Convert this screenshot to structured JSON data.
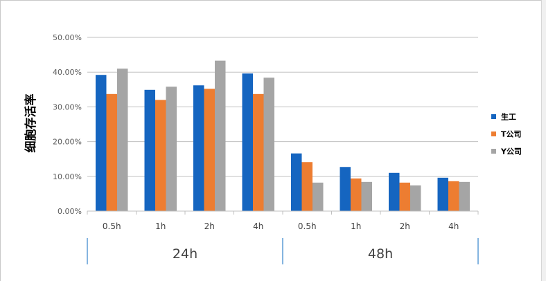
{
  "chart_data": {
    "type": "bar",
    "ylabel": "细胞存活率",
    "ylim": [
      0,
      0.5
    ],
    "yticks": [
      {
        "value": 0.0,
        "label": "0.00%"
      },
      {
        "value": 0.1,
        "label": "10.00%"
      },
      {
        "value": 0.2,
        "label": "20.00%"
      },
      {
        "value": 0.3,
        "label": "30.00%"
      },
      {
        "value": 0.4,
        "label": "40.00%"
      },
      {
        "value": 0.5,
        "label": "50.00%"
      }
    ],
    "grid": true,
    "legend_position": "right",
    "categories": [
      "0.5h",
      "1h",
      "2h",
      "4h",
      "0.5h",
      "1h",
      "2h",
      "4h"
    ],
    "groups": [
      {
        "label": "24h",
        "span": [
          0,
          3
        ]
      },
      {
        "label": "48h",
        "span": [
          4,
          7
        ]
      }
    ],
    "series": [
      {
        "name": "生工",
        "color": "#1565C0",
        "values": [
          0.392,
          0.349,
          0.362,
          0.396,
          0.166,
          0.127,
          0.11,
          0.096
        ]
      },
      {
        "name": "T公司",
        "color": "#ED7D31",
        "values": [
          0.337,
          0.32,
          0.352,
          0.337,
          0.141,
          0.094,
          0.082,
          0.086
        ]
      },
      {
        "name": "Y公司",
        "color": "#A5A5A5",
        "values": [
          0.41,
          0.358,
          0.433,
          0.384,
          0.082,
          0.084,
          0.074,
          0.084
        ]
      }
    ]
  }
}
